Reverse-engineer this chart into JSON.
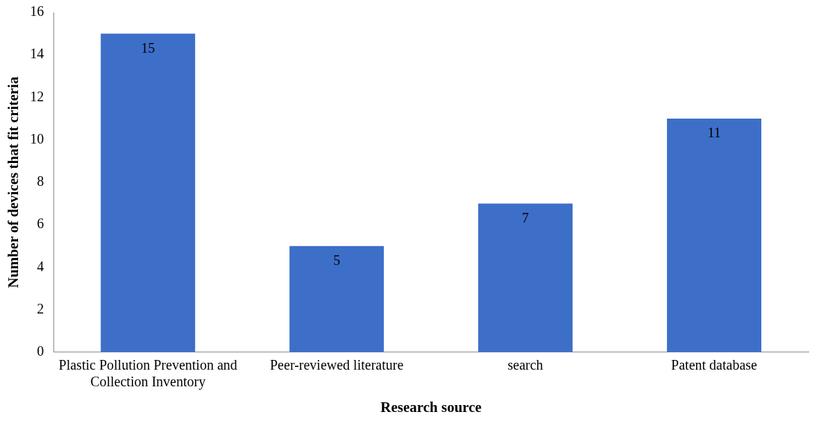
{
  "chart_data": {
    "type": "bar",
    "xlabel": "Research source",
    "ylabel": "Number of devices that fit criteria",
    "categories": [
      "Plastic Pollution Prevention and Collection Inventory",
      "Peer-reviewed literature",
      "search",
      "Patent database"
    ],
    "values": [
      15,
      5,
      7,
      11
    ],
    "color": "#3d6fc9",
    "ylim": [
      0,
      16
    ],
    "yticks": [
      0,
      2,
      4,
      6,
      8,
      10,
      12,
      14,
      16
    ],
    "grid": false,
    "legend": false,
    "data_labels": true
  }
}
